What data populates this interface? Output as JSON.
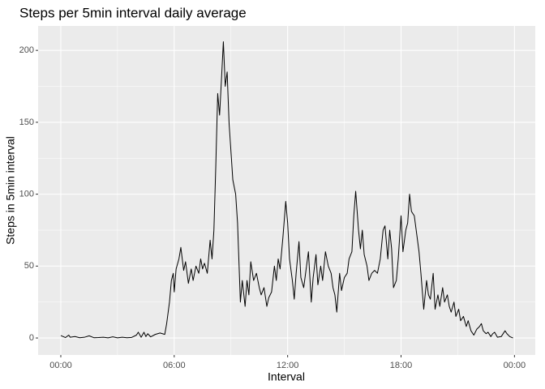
{
  "chart_data": {
    "type": "line",
    "title": "Steps per 5min interval daily average",
    "x_label": "Interval",
    "y_label": "Steps in 5min interval",
    "xlim": [
      -1.2,
      25.1
    ],
    "ylim": [
      -11.8,
      217
    ],
    "xticks": [
      {
        "value": 0,
        "label": "00:00"
      },
      {
        "value": 6,
        "label": "06:00"
      },
      {
        "value": 12,
        "label": "12:00"
      },
      {
        "value": 18,
        "label": "18:00"
      },
      {
        "value": 24,
        "label": "00:00"
      }
    ],
    "yticks": [
      0,
      50,
      100,
      150,
      200
    ],
    "grid": true,
    "x": [
      0,
      0.25,
      0.42,
      0.5,
      0.75,
      1,
      1.25,
      1.5,
      1.75,
      2,
      2.25,
      2.5,
      2.75,
      3,
      3.25,
      3.5,
      3.75,
      4,
      4.1,
      4.25,
      4.4,
      4.5,
      4.6,
      4.75,
      5,
      5.25,
      5.5,
      5.6,
      5.75,
      5.85,
      5.95,
      6.0,
      6.1,
      6.25,
      6.35,
      6.5,
      6.6,
      6.75,
      6.9,
      7.0,
      7.15,
      7.3,
      7.4,
      7.5,
      7.6,
      7.75,
      7.9,
      8.0,
      8.1,
      8.2,
      8.3,
      8.4,
      8.5,
      8.6,
      8.7,
      8.8,
      8.9,
      9.0,
      9.1,
      9.25,
      9.35,
      9.5,
      9.6,
      9.75,
      9.85,
      9.95,
      10.05,
      10.2,
      10.35,
      10.5,
      10.6,
      10.75,
      10.9,
      11.0,
      11.15,
      11.3,
      11.4,
      11.5,
      11.6,
      11.75,
      11.9,
      12.0,
      12.1,
      12.25,
      12.35,
      12.45,
      12.6,
      12.7,
      12.85,
      13.0,
      13.1,
      13.25,
      13.35,
      13.5,
      13.6,
      13.75,
      13.85,
      14.0,
      14.15,
      14.3,
      14.4,
      14.5,
      14.6,
      14.75,
      14.85,
      15.0,
      15.15,
      15.25,
      15.4,
      15.5,
      15.6,
      15.75,
      15.85,
      15.95,
      16.05,
      16.2,
      16.3,
      16.45,
      16.6,
      16.75,
      16.9,
      17.05,
      17.15,
      17.3,
      17.4,
      17.5,
      17.6,
      17.75,
      17.85,
      18.0,
      18.1,
      18.25,
      18.35,
      18.45,
      18.55,
      18.7,
      18.85,
      18.95,
      19.05,
      19.2,
      19.35,
      19.45,
      19.55,
      19.7,
      19.8,
      19.95,
      20.05,
      20.2,
      20.3,
      20.45,
      20.55,
      20.65,
      20.8,
      20.9,
      21.05,
      21.15,
      21.3,
      21.45,
      21.55,
      21.7,
      21.85,
      22.0,
      22.15,
      22.25,
      22.35,
      22.5,
      22.6,
      22.75,
      22.85,
      22.95,
      23.1,
      23.3,
      23.5,
      23.6,
      23.75,
      23.92
    ],
    "series": [
      {
        "name": "Steps",
        "color": "#000000",
        "values": [
          1.7,
          0.3,
          2,
          0.5,
          1,
          0.2,
          0.5,
          1.5,
          0.2,
          0.3,
          0.5,
          0.1,
          0.8,
          0.1,
          0.5,
          0.2,
          0.4,
          2,
          4,
          0.5,
          4,
          1,
          3,
          0.8,
          2.5,
          3.5,
          2.5,
          10,
          25,
          40,
          45,
          32,
          48,
          55,
          63,
          47,
          53,
          38,
          48,
          40,
          50,
          45,
          55,
          48,
          52,
          45,
          68,
          55,
          75,
          120,
          170,
          155,
          180,
          206,
          175,
          185,
          150,
          130,
          110,
          100,
          80,
          25,
          40,
          22,
          40,
          30,
          53,
          40,
          45,
          35,
          30,
          35,
          22,
          28,
          32,
          50,
          40,
          55,
          48,
          70,
          95,
          80,
          55,
          40,
          27,
          45,
          67,
          42,
          35,
          50,
          60,
          25,
          42,
          58,
          37,
          50,
          40,
          60,
          50,
          45,
          35,
          30,
          18,
          45,
          33,
          42,
          45,
          55,
          60,
          85,
          102,
          75,
          62,
          75,
          58,
          50,
          40,
          45,
          47,
          45,
          55,
          75,
          78,
          55,
          75,
          62,
          35,
          40,
          55,
          85,
          60,
          75,
          80,
          100,
          88,
          85,
          70,
          60,
          45,
          20,
          40,
          30,
          27,
          45,
          20,
          30,
          22,
          35,
          25,
          30,
          22,
          18,
          25,
          15,
          20,
          12,
          15,
          8,
          12,
          5,
          2,
          6,
          8,
          10,
          5,
          3,
          4,
          1,
          3,
          4,
          0.5,
          1,
          5,
          3,
          1,
          0
        ]
      }
    ]
  }
}
